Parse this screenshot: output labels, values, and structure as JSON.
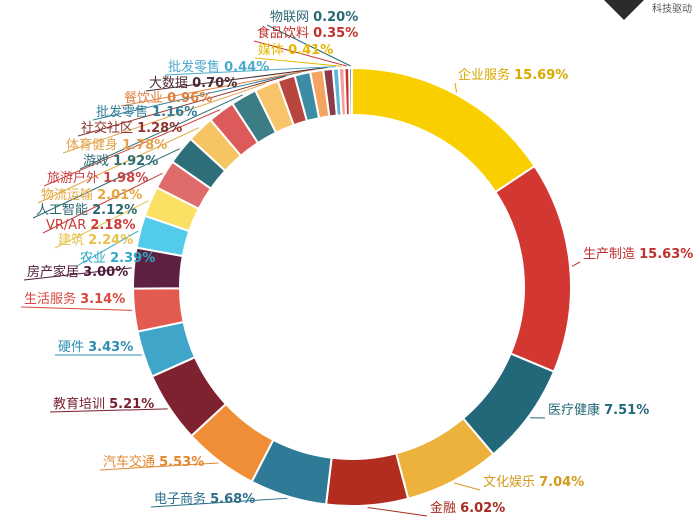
{
  "chart_data": {
    "type": "pie",
    "donut": true,
    "legend": "none",
    "slices": [
      {
        "label": "企业服务",
        "value": 15.69,
        "value_label": "15.69%",
        "color": "#F9CF00"
      },
      {
        "label": "生产制造",
        "value": 15.63,
        "value_label": "15.63%",
        "color": "#D33732"
      },
      {
        "label": "医疗健康",
        "value": 7.51,
        "value_label": "7.51%",
        "color": "#236878"
      },
      {
        "label": "文化娱乐",
        "value": 7.04,
        "value_label": "7.04%",
        "color": "#EDB23C"
      },
      {
        "label": "金融",
        "value": 6.02,
        "value_label": "6.02%",
        "color": "#B22D20"
      },
      {
        "label": "电子商务",
        "value": 5.68,
        "value_label": "5.68%",
        "color": "#2F7A96"
      },
      {
        "label": "汽车交通",
        "value": 5.53,
        "value_label": "5.53%",
        "color": "#EF8E36"
      },
      {
        "label": "教育培训",
        "value": 5.21,
        "value_label": "5.21%",
        "color": "#7F2230"
      },
      {
        "label": "硬件",
        "value": 3.43,
        "value_label": "3.43%",
        "color": "#40A6C9"
      },
      {
        "label": "生活服务",
        "value": 3.14,
        "value_label": "3.14%",
        "color": "#E35A50"
      },
      {
        "label": "房产家居",
        "value": 3.0,
        "value_label": "3.00%",
        "color": "#5E2142"
      },
      {
        "label": "农业",
        "value": 2.39,
        "value_label": "2.39%",
        "color": "#53CBEA"
      },
      {
        "label": "建筑",
        "value": 2.24,
        "value_label": "2.24%",
        "color": "#FCE063"
      },
      {
        "label": "VR/AR",
        "value": 2.18,
        "value_label": "2.18%",
        "color": "#E06B6B"
      },
      {
        "label": "人工智能",
        "value": 2.12,
        "value_label": "2.12%",
        "color": "#2E6E78"
      },
      {
        "label": "物流运输",
        "value": 2.01,
        "value_label": "2.01%",
        "color": "#F6C563"
      },
      {
        "label": "旅游户外",
        "value": 1.98,
        "value_label": "1.98%",
        "color": "#DD5A5A"
      },
      {
        "label": "游戏",
        "value": 1.92,
        "value_label": "1.92%",
        "color": "#3C7C84"
      },
      {
        "label": "体育健身",
        "value": 1.78,
        "value_label": "1.78%",
        "color": "#F7C46A"
      },
      {
        "label": "社交社区",
        "value": 1.28,
        "value_label": "1.28%",
        "color": "#B8463E"
      },
      {
        "label": "批发零售",
        "value": 1.16,
        "value_label": "1.16%",
        "color": "#3D8CA6"
      },
      {
        "label": "餐饮业",
        "value": 0.96,
        "value_label": "0.96%",
        "color": "#F4A461"
      },
      {
        "label": "大数据",
        "value": 0.7,
        "value_label": "0.70%",
        "color": "#8C3A48"
      },
      {
        "label": "批发零售",
        "value": 0.44,
        "value_label": "0.44%",
        "color": "#5FB6D6"
      },
      {
        "label": "媒体",
        "value": 0.41,
        "value_label": "0.41%",
        "color": "#F5A0A0"
      },
      {
        "label": "食品饮料",
        "value": 0.35,
        "value_label": "0.35%",
        "color": "#C8332F"
      },
      {
        "label": "物联网",
        "value": 0.2,
        "value_label": "0.20%",
        "color": "#3B7584"
      }
    ],
    "label_colors": [
      "#D9A900",
      "#C0302C",
      "#236878",
      "#D49A1E",
      "#A82A1E",
      "#2B6F8A",
      "#E3862E",
      "#7A1F2D",
      "#2F8DB3",
      "#D9473E",
      "#4F1B38",
      "#2FA8C8",
      "#E6C24A",
      "#C93B3B",
      "#2B6872",
      "#E3A83F",
      "#C94444",
      "#2F6E76",
      "#E3A24A",
      "#8E3530",
      "#2F7E98",
      "#E07F3F",
      "#4B2A32",
      "#4DA9CC",
      "#E5B800",
      "#C0302C",
      "#2B6872"
    ],
    "label_positions": [
      "right",
      "right",
      "right",
      "right",
      "right",
      "left",
      "left",
      "left",
      "left",
      "left",
      "left",
      "left",
      "left",
      "left",
      "left",
      "left",
      "left",
      "left",
      "left",
      "left",
      "left",
      "left",
      "left",
      "left",
      "top",
      "top",
      "top"
    ]
  },
  "watermark": {
    "text": "科技驱动",
    "color": "#333333"
  }
}
